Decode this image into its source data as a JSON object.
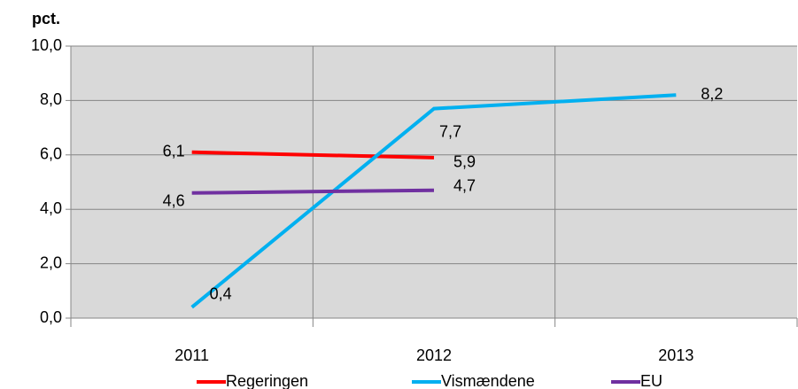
{
  "chart_data": {
    "type": "line",
    "y_axis_label": "pct.",
    "categories": [
      "2011",
      "2012",
      "2013"
    ],
    "series": [
      {
        "name": "Regeringen",
        "color": "#ff0000",
        "values": [
          6.1,
          5.9,
          null
        ],
        "value_labels": [
          "6,1",
          "5,9",
          null
        ]
      },
      {
        "name": "Vismændene",
        "color": "#00b0f0",
        "values": [
          0.4,
          7.7,
          8.2
        ],
        "value_labels": [
          "0,4",
          "7,7",
          "8,2"
        ]
      },
      {
        "name": "EU",
        "color": "#7030a0",
        "values": [
          4.6,
          4.7,
          null
        ],
        "value_labels": [
          "4,6",
          "4,7",
          null
        ]
      }
    ],
    "ylim": [
      0,
      10
    ],
    "yticks": [
      {
        "value": 0,
        "label": "0,0"
      },
      {
        "value": 2,
        "label": "2,0"
      },
      {
        "value": 4,
        "label": "4,0"
      },
      {
        "value": 6,
        "label": "6,0"
      },
      {
        "value": 8,
        "label": "8,0"
      },
      {
        "value": 10,
        "label": "10,0"
      }
    ],
    "grid": true,
    "legend": "bottom"
  }
}
